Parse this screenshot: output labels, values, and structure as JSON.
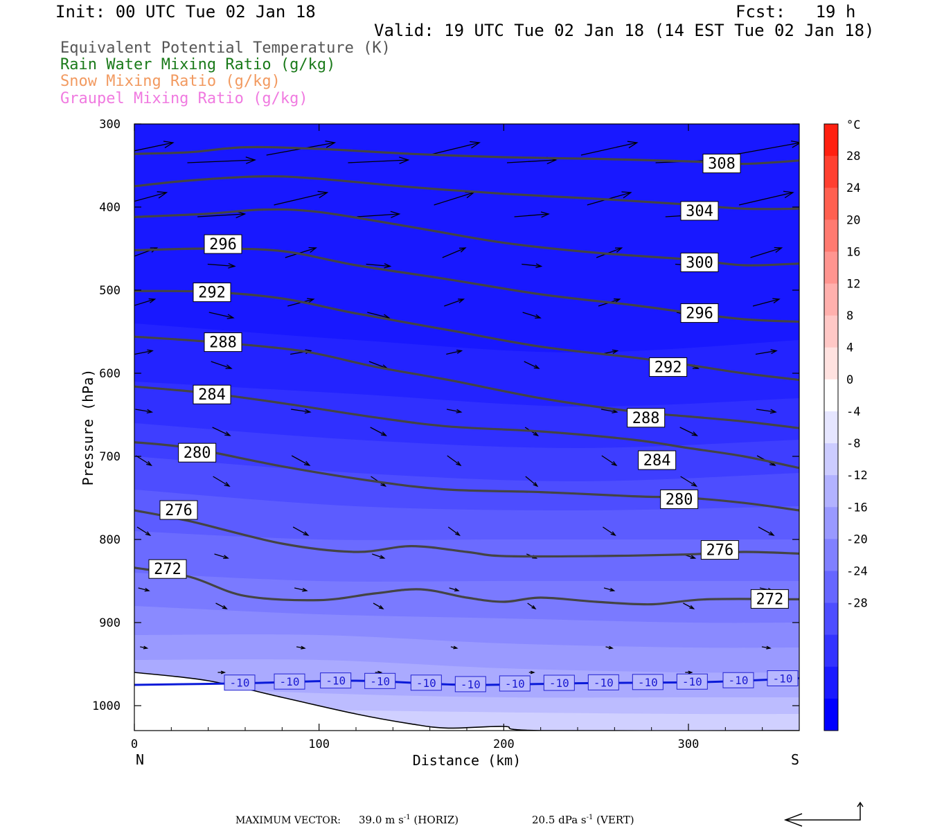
{
  "header": {
    "init": "Init: 00 UTC Tue 02 Jan 18",
    "fcst": "Fcst:   19 h",
    "valid": "Valid: 19 UTC Tue 02 Jan 18 (14 EST Tue 02 Jan 18)"
  },
  "legend": [
    {
      "label": "Equivalent Potential Temperature (K)",
      "color": "#555555"
    },
    {
      "label": "Rain Water Mixing Ratio (g/kg)",
      "color": "#1a7a1a"
    },
    {
      "label": "Snow Mixing Ratio (g/kg)",
      "color": "#f29a60"
    },
    {
      "label": "Graupel Mixing Ratio (g/kg)",
      "color": "#f07ae0"
    }
  ],
  "footer": {
    "max_label": "MAXIMUM VECTOR:",
    "horiz": "39.0 m s",
    "horiz_unit": "(HORIZ)",
    "vert": "20.5 dPa s",
    "vert_unit": "(VERT)",
    "exponent": "-1"
  },
  "chart_data": {
    "type": "cross-section",
    "xlabel": "Distance (km)",
    "ylabel": "Pressure (hPa)",
    "xlim": [
      0,
      360
    ],
    "ylim": [
      1030,
      300
    ],
    "x_ticks": [
      0,
      100,
      200,
      300
    ],
    "y_ticks": [
      300,
      400,
      500,
      600,
      700,
      800,
      900,
      1000
    ],
    "x_end_labels": {
      "left": "N",
      "right": "S"
    },
    "colorbar": {
      "unit": "°C",
      "tick_labels": [
        "28",
        "24",
        "20",
        "16",
        "12",
        "8",
        "4",
        "0",
        "-4",
        "-8",
        "-12",
        "-16",
        "-20",
        "-24",
        "-28"
      ],
      "colors": [
        "#ff2010",
        "#ff4030",
        "#ff6050",
        "#ff7a70",
        "#ff9590",
        "#ffb0ad",
        "#ffc8c6",
        "#ffe2e0",
        "#ffffff",
        "#e6e6ff",
        "#ccccff",
        "#b2b2ff",
        "#9999ff",
        "#8080ff",
        "#6666ff",
        "#4d4dff",
        "#3333ff",
        "#1a1aff",
        "#0000ff"
      ]
    },
    "theta_e_contours": [
      {
        "value": 308,
        "points": [
          [
            0,
            336
          ],
          [
            30,
            334
          ],
          [
            60,
            328
          ],
          [
            100,
            330
          ],
          [
            150,
            336
          ],
          [
            200,
            340
          ],
          [
            250,
            342
          ],
          [
            300,
            345
          ],
          [
            330,
            348
          ],
          [
            360,
            344
          ]
        ]
      },
      {
        "value": 304,
        "points": [
          [
            0,
            375
          ],
          [
            30,
            368
          ],
          [
            70,
            363
          ],
          [
            100,
            366
          ],
          [
            150,
            376
          ],
          [
            200,
            384
          ],
          [
            250,
            390
          ],
          [
            300,
            397
          ],
          [
            330,
            402
          ],
          [
            360,
            402
          ]
        ]
      },
      {
        "value": 300,
        "points": [
          [
            0,
            412
          ],
          [
            40,
            408
          ],
          [
            70,
            403
          ],
          [
            100,
            406
          ],
          [
            150,
            424
          ],
          [
            200,
            443
          ],
          [
            250,
            455
          ],
          [
            300,
            463
          ],
          [
            330,
            470
          ],
          [
            360,
            468
          ]
        ]
      },
      {
        "value": 296,
        "points": [
          [
            0,
            452
          ],
          [
            40,
            450
          ],
          [
            80,
            453
          ],
          [
            120,
            470
          ],
          [
            170,
            487
          ],
          [
            220,
            505
          ],
          [
            270,
            518
          ],
          [
            300,
            527
          ],
          [
            330,
            535
          ],
          [
            360,
            538
          ]
        ]
      },
      {
        "value": 292,
        "points": [
          [
            0,
            501
          ],
          [
            40,
            502
          ],
          [
            80,
            510
          ],
          [
            120,
            528
          ],
          [
            170,
            548
          ],
          [
            220,
            568
          ],
          [
            270,
            581
          ],
          [
            300,
            590
          ],
          [
            330,
            600
          ],
          [
            360,
            608
          ]
        ]
      },
      {
        "value": 288,
        "points": [
          [
            0,
            556
          ],
          [
            40,
            562
          ],
          [
            90,
            573
          ],
          [
            130,
            592
          ],
          [
            170,
            608
          ],
          [
            220,
            630
          ],
          [
            270,
            646
          ],
          [
            300,
            652
          ],
          [
            330,
            658
          ],
          [
            360,
            666
          ]
        ]
      },
      {
        "value": 284,
        "points": [
          [
            0,
            616
          ],
          [
            40,
            624
          ],
          [
            80,
            636
          ],
          [
            130,
            653
          ],
          [
            170,
            664
          ],
          [
            220,
            670
          ],
          [
            270,
            680
          ],
          [
            300,
            690
          ],
          [
            330,
            700
          ],
          [
            360,
            714
          ]
        ]
      },
      {
        "value": 280,
        "points": [
          [
            0,
            683
          ],
          [
            30,
            690
          ],
          [
            80,
            712
          ],
          [
            130,
            730
          ],
          [
            170,
            740
          ],
          [
            220,
            743
          ],
          [
            270,
            748
          ],
          [
            300,
            750
          ],
          [
            330,
            756
          ],
          [
            360,
            765
          ]
        ]
      },
      {
        "value": 276,
        "points": [
          [
            0,
            765
          ],
          [
            30,
            778
          ],
          [
            80,
            805
          ],
          [
            120,
            815
          ],
          [
            150,
            808
          ],
          [
            180,
            815
          ],
          [
            200,
            820
          ],
          [
            250,
            820
          ],
          [
            300,
            818
          ],
          [
            330,
            815
          ],
          [
            360,
            817
          ]
        ]
      },
      {
        "value": 272,
        "points": [
          [
            0,
            834
          ],
          [
            30,
            845
          ],
          [
            60,
            868
          ],
          [
            100,
            873
          ],
          [
            130,
            865
          ],
          [
            155,
            860
          ],
          [
            180,
            870
          ],
          [
            200,
            875
          ],
          [
            220,
            870
          ],
          [
            250,
            875
          ],
          [
            280,
            878
          ],
          [
            310,
            872
          ],
          [
            360,
            872
          ]
        ]
      }
    ],
    "theta_e_labels": [
      {
        "text": "308",
        "x": 318,
        "p": 348
      },
      {
        "text": "304",
        "x": 306,
        "p": 405
      },
      {
        "text": "300",
        "x": 306,
        "p": 467
      },
      {
        "text": "296",
        "x": 306,
        "p": 528
      },
      {
        "text": "292",
        "x": 289,
        "p": 593
      },
      {
        "text": "288",
        "x": 277,
        "p": 654
      },
      {
        "text": "284",
        "x": 283,
        "p": 705
      },
      {
        "text": "280",
        "x": 295,
        "p": 752
      },
      {
        "text": "276",
        "x": 317,
        "p": 813
      },
      {
        "text": "272",
        "x": 344,
        "p": 872
      },
      {
        "text": "296",
        "x": 48,
        "p": 445
      },
      {
        "text": "292",
        "x": 42,
        "p": 503
      },
      {
        "text": "288",
        "x": 48,
        "p": 563
      },
      {
        "text": "284",
        "x": 42,
        "p": 626
      },
      {
        "text": "280",
        "x": 34,
        "p": 696
      },
      {
        "text": "276",
        "x": 24,
        "p": 765
      },
      {
        "text": "272",
        "x": 18,
        "p": 836
      }
    ],
    "minus10_isotherm": {
      "label": "-10",
      "points": [
        [
          0,
          975
        ],
        [
          60,
          973
        ],
        [
          120,
          970
        ],
        [
          180,
          975
        ],
        [
          240,
          973
        ],
        [
          300,
          972
        ],
        [
          330,
          970
        ],
        [
          360,
          967
        ]
      ],
      "label_x": [
        57,
        84,
        109,
        133,
        158,
        182,
        206,
        230,
        254,
        278,
        302,
        327,
        351
      ]
    },
    "terrain": [
      [
        0,
        960
      ],
      [
        40,
        970
      ],
      [
        80,
        990
      ],
      [
        120,
        1010
      ],
      [
        150,
        1022
      ],
      [
        170,
        1027
      ],
      [
        200,
        1025
      ],
      [
        220,
        1030
      ],
      [
        360,
        1030
      ]
    ]
  }
}
